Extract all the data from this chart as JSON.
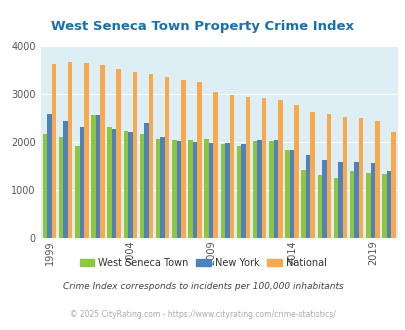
{
  "title": "West Seneca Town Property Crime Index",
  "years": [
    1999,
    2000,
    2001,
    2002,
    2003,
    2004,
    2005,
    2006,
    2007,
    2008,
    2009,
    2010,
    2011,
    2012,
    2013,
    2014,
    2015,
    2016,
    2017,
    2018,
    2019,
    2020
  ],
  "west_seneca": [
    2175,
    2100,
    1920,
    2560,
    2310,
    2220,
    2170,
    2060,
    2040,
    2050,
    2070,
    1950,
    1920,
    2020,
    2020,
    1840,
    1420,
    1300,
    1250,
    1400,
    1340,
    1330
  ],
  "new_york": [
    2590,
    2440,
    2320,
    2570,
    2260,
    2210,
    2390,
    2100,
    2020,
    2000,
    1980,
    1970,
    1960,
    2030,
    2030,
    1840,
    1730,
    1620,
    1590,
    1570,
    1550,
    1390
  ],
  "national": [
    3620,
    3660,
    3640,
    3610,
    3520,
    3460,
    3410,
    3350,
    3290,
    3250,
    3040,
    2970,
    2940,
    2920,
    2880,
    2770,
    2630,
    2580,
    2520,
    2500,
    2440,
    2200
  ],
  "west_seneca_color": "#8dc63f",
  "new_york_color": "#4f81bd",
  "national_color": "#f9a94b",
  "background_color": "#ddeef5",
  "ylim": [
    0,
    4000
  ],
  "yticks": [
    0,
    1000,
    2000,
    3000,
    4000
  ],
  "xtick_years": [
    1999,
    2004,
    2009,
    2014,
    2019
  ],
  "subtitle": "Crime Index corresponds to incidents per 100,000 inhabitants",
  "footer": "© 2025 CityRating.com - https://www.cityrating.com/crime-statistics/",
  "legend_labels": [
    "West Seneca Town",
    "New York",
    "National"
  ],
  "title_color": "#1a6fad",
  "subtitle_color": "#444444",
  "footer_color": "#aaaaaa"
}
